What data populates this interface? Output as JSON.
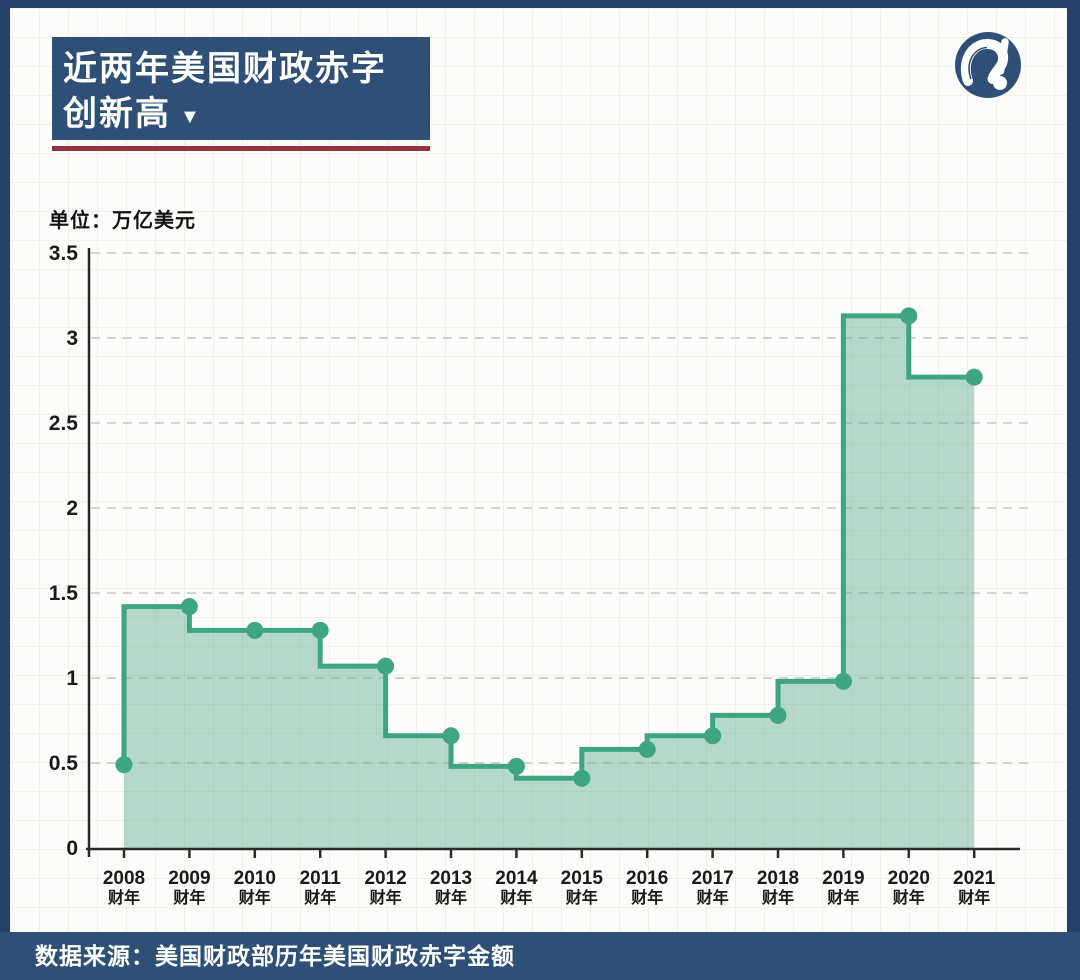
{
  "header": {
    "title_line1": "近两年美国财政赤字",
    "title_line2": "创新高",
    "title_arrow": "▼"
  },
  "icons": {
    "brand_logo": "question-exclamation-mark",
    "title_arrow": "down-triangle"
  },
  "unit_label": "单位：万亿美元",
  "footer": {
    "source": "数据来源：美国财政部历年美国财政赤字金额"
  },
  "colors": {
    "navy_frame": "#24416a",
    "navy_panel": "#2e5077",
    "accent_red": "#8e3440",
    "line_green": "#3ea584",
    "fill_green": "rgba(69,166,132,0.40)",
    "grid_dash": "#d6d4d2",
    "axis": "#2a2a2a",
    "label": "#1a1a1a"
  },
  "chart_data": {
    "type": "area",
    "subtype": "step-before",
    "title": "近两年美国财政赤字创新高",
    "unit": "万亿美元",
    "categories": [
      "2008",
      "2009",
      "2010",
      "2011",
      "2012",
      "2013",
      "2014",
      "2015",
      "2016",
      "2017",
      "2018",
      "2019",
      "2020",
      "2021"
    ],
    "category_suffix": "财年",
    "values": [
      0.49,
      1.42,
      1.28,
      1.28,
      1.07,
      0.66,
      0.48,
      0.41,
      0.58,
      0.66,
      0.78,
      0.98,
      3.13,
      2.77
    ],
    "xlabel": "",
    "ylabel": "万亿美元",
    "ylim": [
      0,
      3.5
    ],
    "yticks": [
      3.5,
      3,
      2.5,
      2,
      1.5,
      1,
      0.5,
      0
    ],
    "grid": "horizontal-dashed",
    "legend": "none",
    "markers": "circle-at-each-year"
  }
}
